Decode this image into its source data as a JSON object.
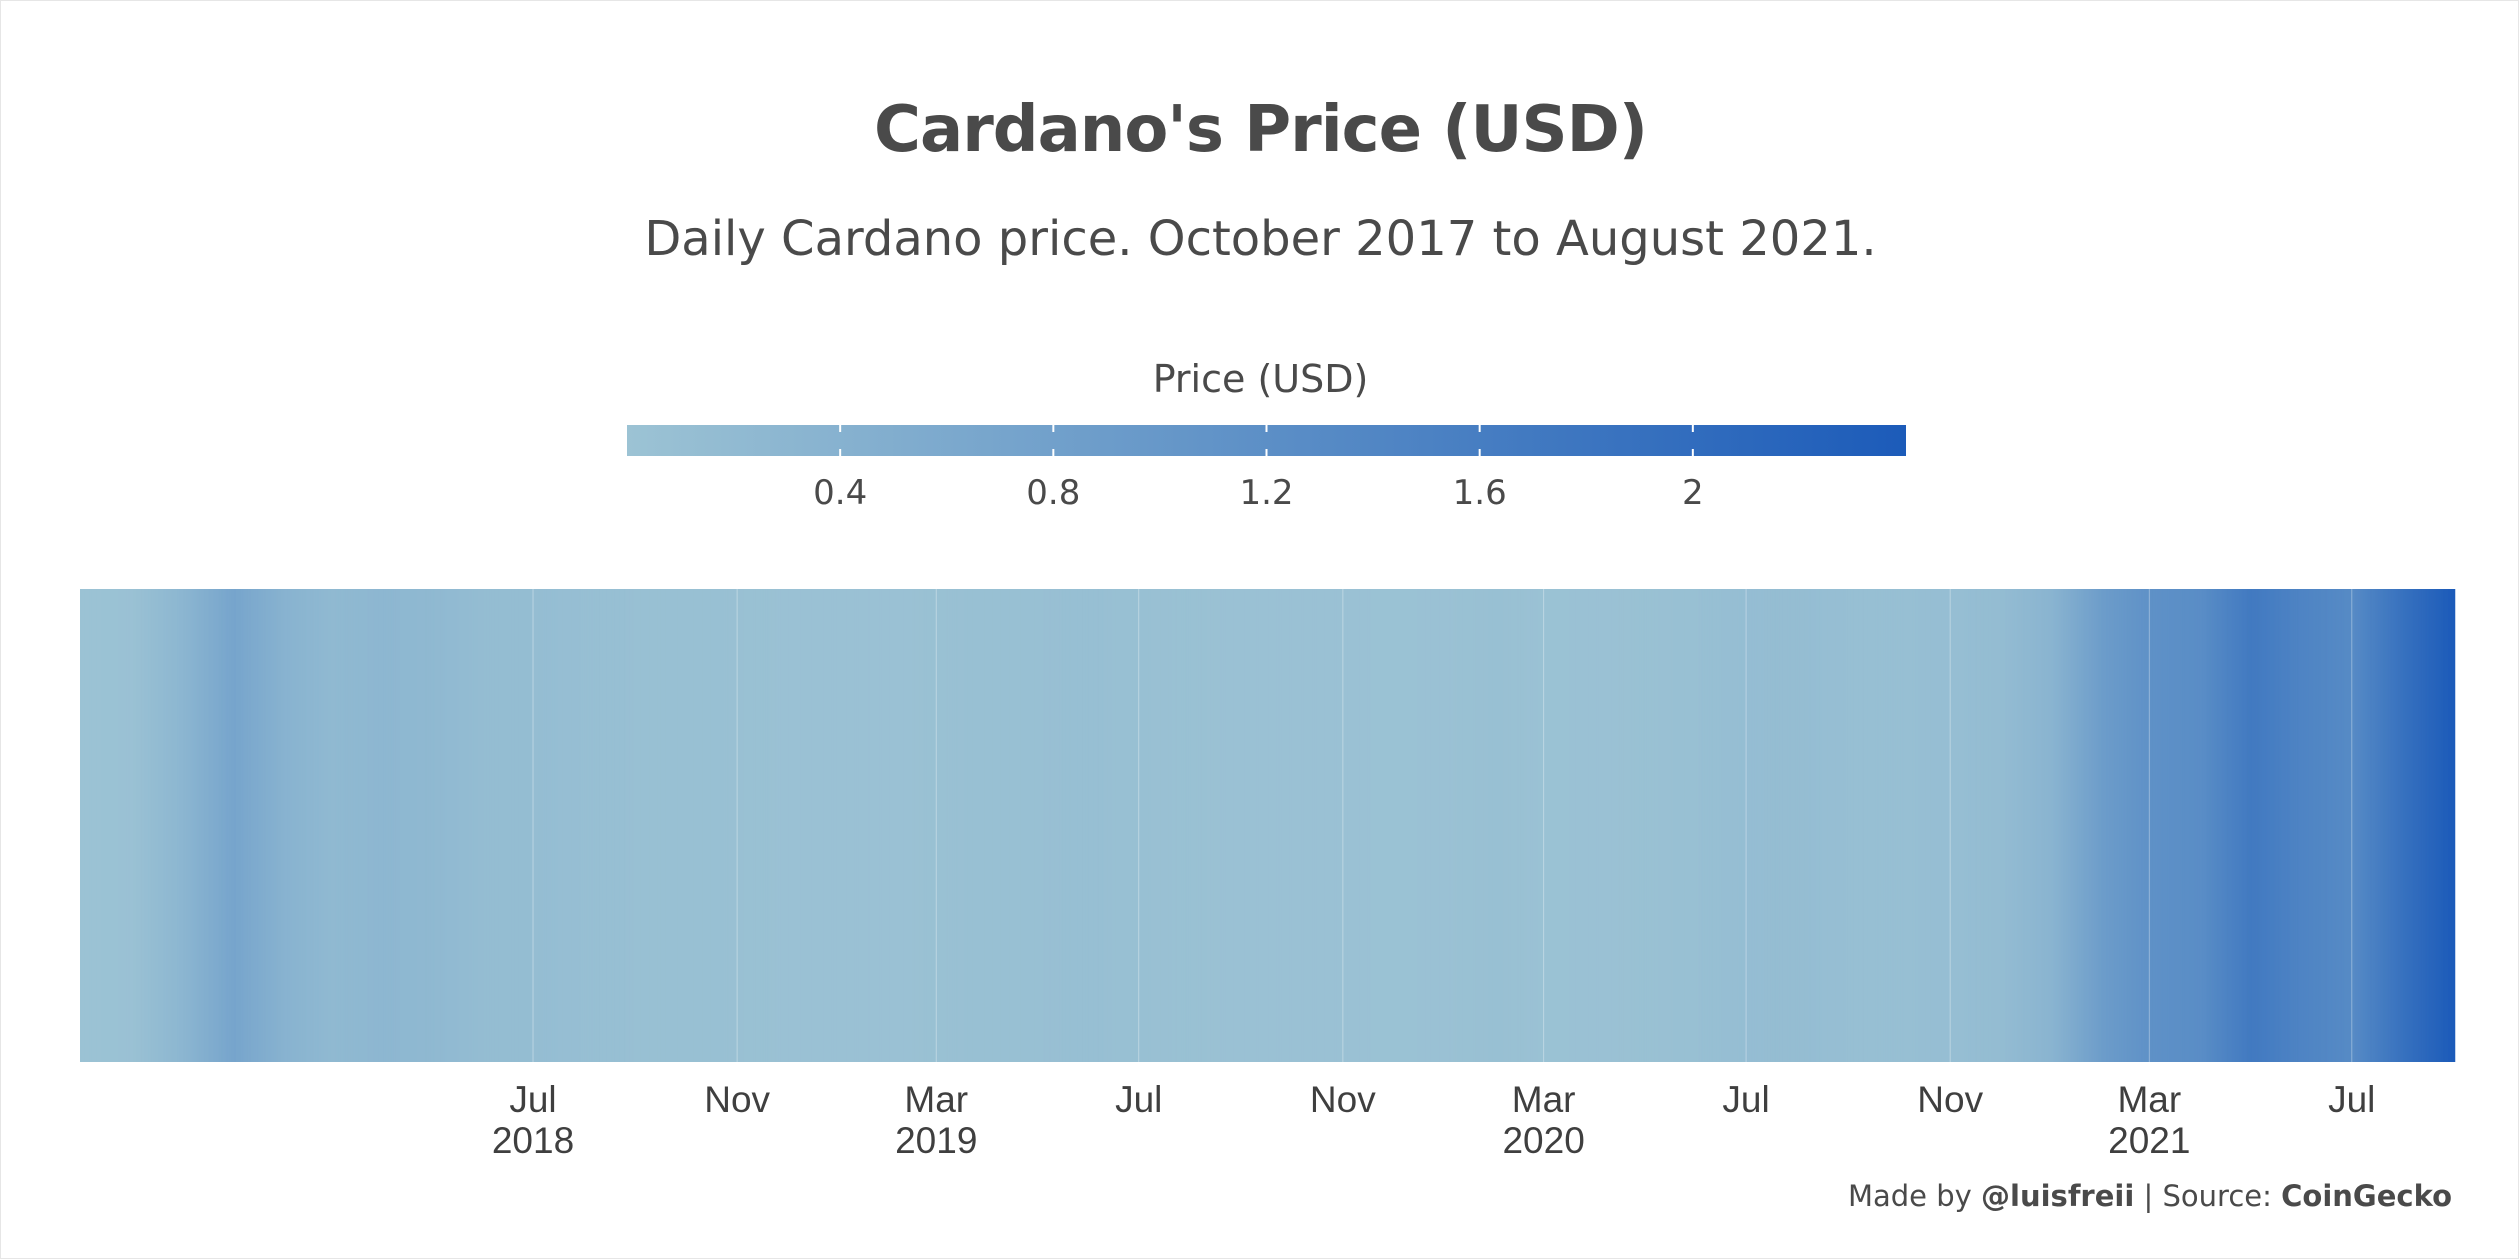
{
  "title": "Cardano's Price (USD)",
  "subtitle": "Daily Cardano price. October 2017 to August 2021.",
  "caption": {
    "made_by_prefix": "Made by ",
    "author": "@luisfreii",
    "source_prefix": " | Source: ",
    "source": "CoinGecko"
  },
  "chart_data": {
    "type": "heatmap",
    "title": "Cardano's Price (USD)",
    "subtitle": "Daily Cardano price. October 2017 to August 2021.",
    "xlabel": "",
    "ylabel": "",
    "x_range": [
      "2017-10-01",
      "2021-08-31"
    ],
    "grid": true,
    "colors": {
      "low": "#9cc3d4",
      "high": "#1c5bb9",
      "gridline": "#ffffff"
    },
    "legend": {
      "title": "Price (USD)",
      "placement": "top",
      "range": [
        0,
        2.4
      ],
      "ticks": [
        0.4,
        0.8,
        1.2,
        1.6,
        2
      ],
      "tick_labels": [
        "0.4",
        "0.8",
        "1.2",
        "1.6",
        "2"
      ]
    },
    "x_ticks": [
      {
        "date": "2018-07-01",
        "label": "Jul",
        "year_label": "2018"
      },
      {
        "date": "2018-11-01",
        "label": "Nov",
        "year_label": ""
      },
      {
        "date": "2019-03-01",
        "label": "Mar",
        "year_label": "2019"
      },
      {
        "date": "2019-07-01",
        "label": "Jul",
        "year_label": ""
      },
      {
        "date": "2019-11-01",
        "label": "Nov",
        "year_label": ""
      },
      {
        "date": "2020-03-01",
        "label": "Mar",
        "year_label": "2020"
      },
      {
        "date": "2020-07-01",
        "label": "Jul",
        "year_label": ""
      },
      {
        "date": "2020-11-01",
        "label": "Nov",
        "year_label": ""
      },
      {
        "date": "2021-03-01",
        "label": "Mar",
        "year_label": "2021"
      },
      {
        "date": "2021-07-01",
        "label": "Jul",
        "year_label": ""
      }
    ],
    "series": [
      {
        "values": [
          [
            "2017-10-01",
            0.02
          ],
          [
            "2017-11-01",
            0.04
          ],
          [
            "2017-12-01",
            0.3
          ],
          [
            "2018-01-01",
            0.7
          ],
          [
            "2018-02-01",
            0.38
          ],
          [
            "2018-03-01",
            0.23
          ],
          [
            "2018-04-01",
            0.28
          ],
          [
            "2018-05-01",
            0.24
          ],
          [
            "2018-06-01",
            0.15
          ],
          [
            "2018-07-01",
            0.14
          ],
          [
            "2018-08-01",
            0.1
          ],
          [
            "2018-09-01",
            0.08
          ],
          [
            "2018-10-01",
            0.08
          ],
          [
            "2018-11-01",
            0.06
          ],
          [
            "2018-12-01",
            0.04
          ],
          [
            "2019-01-01",
            0.04
          ],
          [
            "2019-02-01",
            0.04
          ],
          [
            "2019-03-01",
            0.05
          ],
          [
            "2019-04-01",
            0.08
          ],
          [
            "2019-05-01",
            0.08
          ],
          [
            "2019-06-01",
            0.09
          ],
          [
            "2019-07-01",
            0.07
          ],
          [
            "2019-08-01",
            0.05
          ],
          [
            "2019-09-01",
            0.04
          ],
          [
            "2019-10-01",
            0.04
          ],
          [
            "2019-11-01",
            0.04
          ],
          [
            "2019-12-01",
            0.03
          ],
          [
            "2020-01-01",
            0.04
          ],
          [
            "2020-02-01",
            0.07
          ],
          [
            "2020-03-01",
            0.03
          ],
          [
            "2020-04-01",
            0.04
          ],
          [
            "2020-05-01",
            0.05
          ],
          [
            "2020-06-01",
            0.08
          ],
          [
            "2020-07-01",
            0.13
          ],
          [
            "2020-08-01",
            0.14
          ],
          [
            "2020-09-01",
            0.1
          ],
          [
            "2020-10-01",
            0.1
          ],
          [
            "2020-11-01",
            0.11
          ],
          [
            "2020-12-01",
            0.16
          ],
          [
            "2021-01-01",
            0.35
          ],
          [
            "2021-02-01",
            0.9
          ],
          [
            "2021-03-01",
            1.15
          ],
          [
            "2021-04-01",
            1.25
          ],
          [
            "2021-05-01",
            1.7
          ],
          [
            "2021-06-01",
            1.45
          ],
          [
            "2021-07-01",
            1.3
          ],
          [
            "2021-08-01",
            1.9
          ],
          [
            "2021-08-31",
            2.4
          ]
        ]
      }
    ]
  }
}
